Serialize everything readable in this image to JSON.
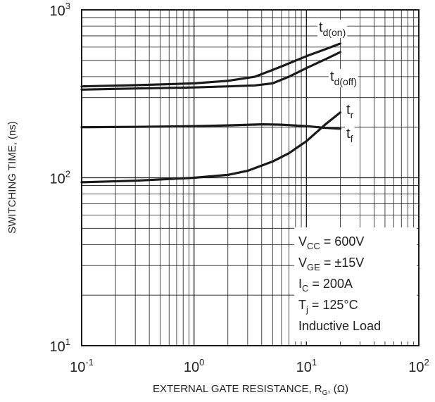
{
  "chart_data": {
    "type": "line",
    "title": "",
    "xlabel": {
      "main": "EXTERNAL GATE RESISTANCE, R",
      "sub": "G",
      "tail": ", (Ω)"
    },
    "ylabel": "SWITCHING TIME, (ns)",
    "xscale": "log",
    "yscale": "log",
    "xlim": [
      0.1,
      100
    ],
    "ylim": [
      10,
      1000
    ],
    "grid": true,
    "x_ticks": [
      {
        "base": "10",
        "exp": "-1"
      },
      {
        "base": "10",
        "exp": "0"
      },
      {
        "base": "10",
        "exp": "1"
      },
      {
        "base": "10",
        "exp": "2"
      }
    ],
    "y_ticks": [
      {
        "base": "10",
        "exp": "1"
      },
      {
        "base": "10",
        "exp": "2"
      },
      {
        "base": "10",
        "exp": "3"
      }
    ],
    "series": [
      {
        "name": "td(on)",
        "label_main": "t",
        "label_sub": "d(on)",
        "x": [
          0.1,
          0.3,
          1.0,
          2.0,
          3.5,
          6.0,
          10.0,
          15.0,
          20.0
        ],
        "y": [
          350,
          356,
          365,
          378,
          400,
          460,
          530,
          585,
          630
        ]
      },
      {
        "name": "td(off)",
        "label_main": "t",
        "label_sub": "d(off)",
        "x": [
          0.1,
          0.3,
          1.0,
          2.0,
          3.5,
          5.0,
          7.0,
          10.0,
          15.0,
          20.0
        ],
        "y": [
          335,
          340,
          345,
          350,
          355,
          365,
          400,
          450,
          510,
          560
        ]
      },
      {
        "name": "tr",
        "label_main": "t",
        "label_sub": "r",
        "x": [
          0.1,
          0.3,
          1.0,
          2.0,
          3.0,
          5.0,
          7.0,
          10.0,
          15.0,
          20.0
        ],
        "y": [
          94,
          96,
          100,
          104,
          110,
          125,
          140,
          165,
          210,
          245
        ]
      },
      {
        "name": "tf",
        "label_main": "t",
        "label_sub": "f",
        "x": [
          0.1,
          0.3,
          1.0,
          2.0,
          4.0,
          6.0,
          10.0,
          15.0,
          20.0
        ],
        "y": [
          200,
          201,
          203,
          205,
          208,
          207,
          203,
          198,
          196
        ]
      }
    ],
    "conditions": [
      {
        "main": "V",
        "sub": "CC",
        "tail": " = 600V"
      },
      {
        "main": "V",
        "sub": "GE",
        "tail": " = ±15V"
      },
      {
        "main": "I",
        "sub": "C",
        "tail": " = 200A"
      },
      {
        "main": "T",
        "sub": "j",
        "tail": " = 125°C"
      },
      {
        "main": "Inductive Load",
        "sub": "",
        "tail": ""
      }
    ],
    "colors": {
      "curve": "#1a1a1a",
      "grid": "#1a1a1a",
      "frame": "#1a1a1a",
      "background": "#ffffff"
    }
  }
}
